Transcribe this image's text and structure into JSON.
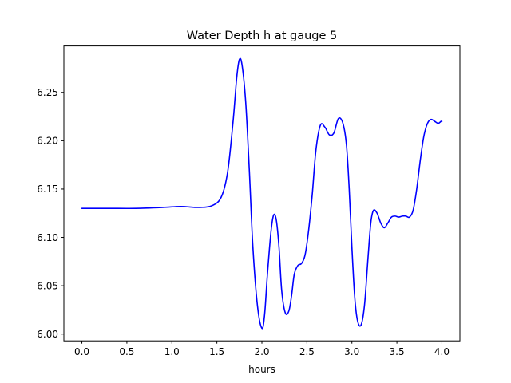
{
  "chart_data": {
    "type": "line",
    "title": "Water Depth h at gauge 5",
    "xlabel": "hours",
    "ylabel": "",
    "xlim": [
      -0.2,
      4.2
    ],
    "ylim": [
      5.993,
      6.298
    ],
    "xticks": [
      0.0,
      0.5,
      1.0,
      1.5,
      2.0,
      2.5,
      3.0,
      3.5,
      4.0
    ],
    "xtick_labels": [
      "0.0",
      "0.5",
      "1.0",
      "1.5",
      "2.0",
      "2.5",
      "3.0",
      "3.5",
      "4.0"
    ],
    "yticks": [
      6.0,
      6.05,
      6.1,
      6.15,
      6.2,
      6.25
    ],
    "ytick_labels": [
      "6.00",
      "6.05",
      "6.10",
      "6.15",
      "6.20",
      "6.25"
    ],
    "grid": false,
    "legend": "none",
    "series": [
      {
        "color": "#0000ff",
        "x": [
          0.0,
          0.3,
          0.6,
          0.9,
          1.1,
          1.3,
          1.45,
          1.55,
          1.62,
          1.68,
          1.72,
          1.75,
          1.78,
          1.82,
          1.86,
          1.9,
          1.95,
          2.0,
          2.03,
          2.06,
          2.1,
          2.13,
          2.16,
          2.19,
          2.22,
          2.26,
          2.3,
          2.33,
          2.36,
          2.4,
          2.44,
          2.48,
          2.52,
          2.56,
          2.6,
          2.65,
          2.7,
          2.75,
          2.8,
          2.85,
          2.9,
          2.94,
          2.97,
          3.0,
          3.03,
          3.06,
          3.1,
          3.14,
          3.18,
          3.21,
          3.24,
          3.28,
          3.32,
          3.36,
          3.4,
          3.44,
          3.48,
          3.52,
          3.56,
          3.6,
          3.64,
          3.68,
          3.72,
          3.76,
          3.8,
          3.84,
          3.88,
          3.92,
          3.96,
          3.99,
          4.0
        ],
        "y": [
          6.13,
          6.13,
          6.13,
          6.131,
          6.132,
          6.131,
          6.133,
          6.142,
          6.168,
          6.22,
          6.265,
          6.284,
          6.278,
          6.24,
          6.17,
          6.09,
          6.03,
          6.006,
          6.02,
          6.06,
          6.105,
          6.123,
          6.118,
          6.09,
          6.045,
          6.022,
          6.024,
          6.04,
          6.062,
          6.071,
          6.073,
          6.082,
          6.108,
          6.145,
          6.19,
          6.216,
          6.214,
          6.206,
          6.208,
          6.223,
          6.218,
          6.195,
          6.15,
          6.09,
          6.04,
          6.015,
          6.009,
          6.03,
          6.08,
          6.115,
          6.128,
          6.125,
          6.115,
          6.11,
          6.115,
          6.121,
          6.122,
          6.121,
          6.122,
          6.122,
          6.121,
          6.128,
          6.15,
          6.18,
          6.205,
          6.218,
          6.222,
          6.22,
          6.218,
          6.22,
          6.22
        ]
      }
    ]
  }
}
